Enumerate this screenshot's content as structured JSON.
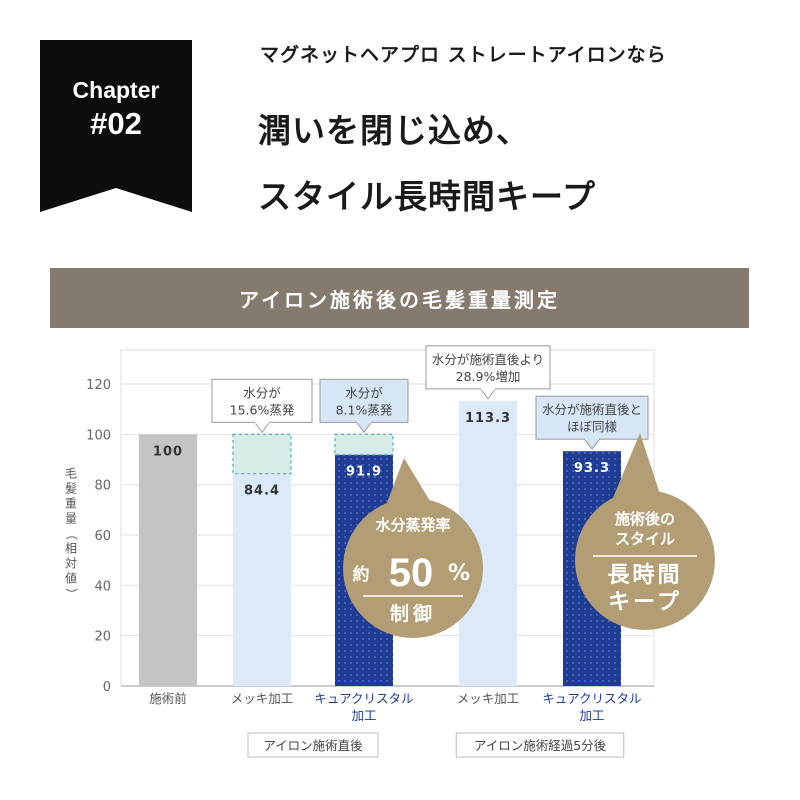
{
  "chapter": {
    "label": "Chapter",
    "number": "#02"
  },
  "header": {
    "subtitle": "マグネットヘアプロ ストレートアイロンなら",
    "headline_line1": "潤いを閉じ込め、",
    "headline_line2": "スタイル長時間キープ"
  },
  "banner": {
    "title": "アイロン施術後の毛髪重量測定"
  },
  "colors": {
    "banner": "#857a6e",
    "gold": "#b29d74",
    "navy": "#1f3c95",
    "light_blue": "#dbe9f8",
    "gray_bar": "#c4c4c4",
    "mint": "#d7ece6"
  },
  "chart_data": {
    "type": "bar",
    "ylabel": "毛髪重量（相対値）",
    "ylim": [
      0,
      120
    ],
    "yticks": [
      0,
      20,
      40,
      60,
      80,
      100,
      120
    ],
    "categories": [
      {
        "label": [
          "施術前"
        ],
        "value": 100,
        "value_label": "100",
        "style": "gray",
        "label_color": "#555555"
      },
      {
        "label": [
          "メッキ加工"
        ],
        "value": 84.4,
        "value_label": "84.4",
        "style": "light",
        "label_color": "#555555",
        "lost_to": 100
      },
      {
        "label": [
          "キュアクリスタル",
          "加工"
        ],
        "value": 91.9,
        "value_label": "91.9",
        "style": "navy",
        "label_color": "#1f3c95",
        "lost_to": 100
      },
      {
        "label": [
          "メッキ加工"
        ],
        "value": 113.3,
        "value_label": "113.3",
        "style": "light",
        "label_color": "#555555"
      },
      {
        "label": [
          "キュアクリスタル",
          "加工"
        ],
        "value": 93.3,
        "value_label": "93.3",
        "style": "navy",
        "label_color": "#1f3c95"
      }
    ],
    "groups": [
      {
        "label": "アイロン施術直後",
        "bars": [
          1,
          2
        ]
      },
      {
        "label": "アイロン施術経過5分後",
        "bars": [
          3,
          4
        ]
      }
    ],
    "annotations": [
      {
        "bar": 1,
        "lines": [
          "水分が",
          "15.6%蒸発"
        ],
        "style": "white"
      },
      {
        "bar": 2,
        "lines": [
          "水分が",
          "8.1%蒸発"
        ],
        "style": "blue"
      },
      {
        "bar": 3,
        "lines": [
          "水分が施術直後より",
          "28.9%増加"
        ],
        "style": "white"
      },
      {
        "bar": 4,
        "lines": [
          "水分が施術直後と",
          "ほぼ同様"
        ],
        "style": "blue"
      }
    ],
    "callouts": [
      {
        "bar": 2,
        "top": "水分蒸発率",
        "prefix": "約",
        "big": "50",
        "unit": "%",
        "bottom": "制御"
      },
      {
        "bar": 4,
        "top_lines": [
          "施術後の",
          "スタイル"
        ],
        "bottom_lines": [
          "長時間",
          "キープ"
        ]
      }
    ]
  }
}
